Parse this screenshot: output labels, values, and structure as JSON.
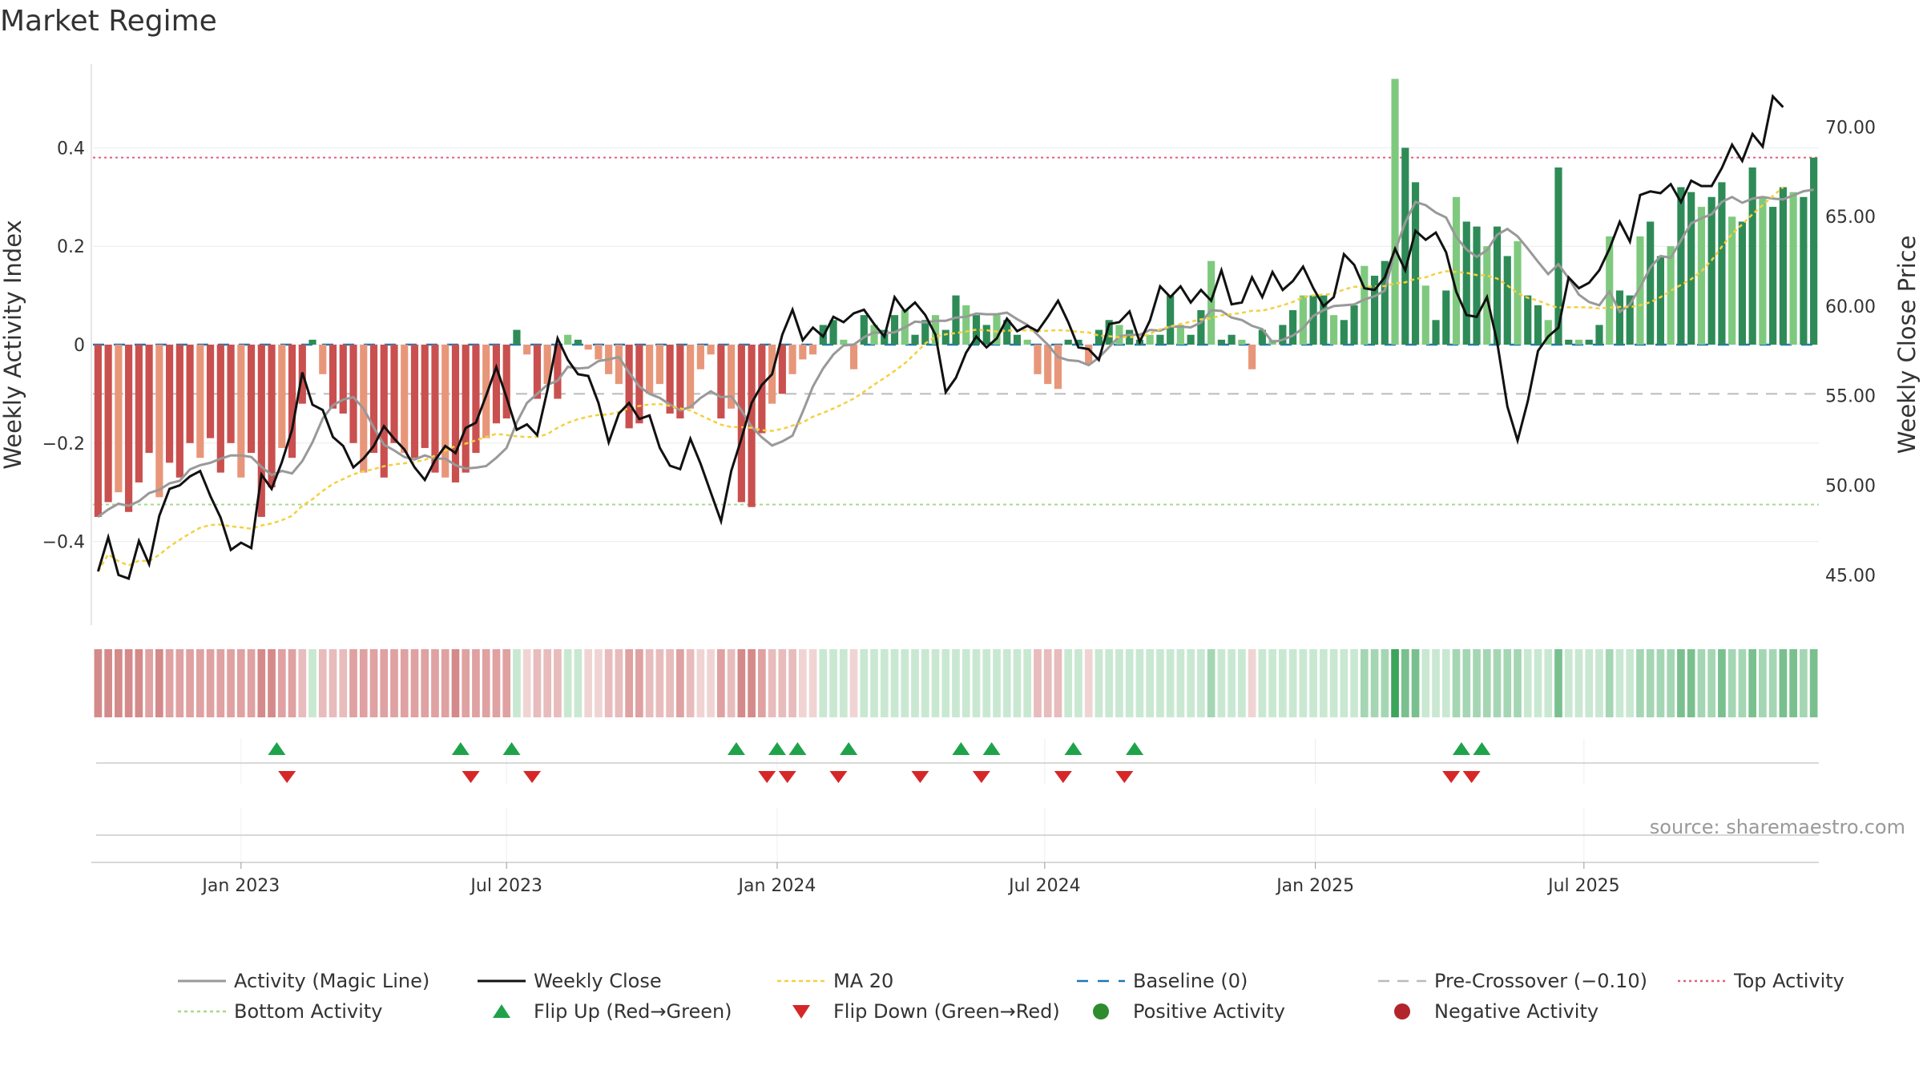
{
  "chart_data": {
    "type": "bar",
    "title": "Market Regime",
    "ylabel": "Weekly Activity Index",
    "y2label": "Weekly Close Price",
    "ylim": [
      -0.57,
      0.57
    ],
    "y2lim": [
      42.2,
      73.5
    ],
    "y_ticks": [
      0.4,
      0.2,
      0,
      -0.2,
      -0.4
    ],
    "y_tick_labels": [
      "0.4",
      "0.2",
      "0",
      "−0.2",
      "−0.4"
    ],
    "y2_ticks": [
      70,
      65,
      60,
      55,
      50,
      45
    ],
    "y2_tick_labels": [
      "70.00",
      "65.00",
      "60.00",
      "55.00",
      "50.00",
      "45.00"
    ],
    "x_tick_labels": [
      "Jan 2023",
      "Jul 2023",
      "Jan 2024",
      "Jul 2024",
      "Jan 2025",
      "Jul 2025"
    ],
    "x_tick_weeks": [
      14.5,
      40.5,
      67,
      93.2,
      119.7,
      146
    ],
    "top_activity": 0.38,
    "bottom_activity": -0.325,
    "pre_crossover": -0.1,
    "baseline": 0,
    "grid": true,
    "legend_position": "bottom",
    "source": "source: sharemaestro.com",
    "activity": [
      -0.35,
      -0.32,
      -0.3,
      -0.34,
      -0.28,
      -0.22,
      -0.31,
      -0.24,
      -0.27,
      -0.2,
      -0.23,
      -0.19,
      -0.26,
      -0.2,
      -0.27,
      -0.22,
      -0.35,
      -0.29,
      -0.21,
      -0.23,
      -0.12,
      0.01,
      -0.06,
      -0.13,
      -0.14,
      -0.2,
      -0.26,
      -0.22,
      -0.27,
      -0.2,
      -0.22,
      -0.23,
      -0.21,
      -0.26,
      -0.27,
      -0.28,
      -0.26,
      -0.22,
      -0.19,
      -0.16,
      -0.15,
      0.03,
      -0.02,
      -0.11,
      -0.08,
      -0.11,
      0.02,
      0.01,
      -0.01,
      -0.03,
      -0.06,
      -0.08,
      -0.17,
      -0.16,
      -0.1,
      -0.08,
      -0.14,
      -0.15,
      -0.13,
      -0.05,
      -0.02,
      -0.15,
      -0.13,
      -0.32,
      -0.33,
      -0.18,
      -0.12,
      -0.1,
      -0.06,
      -0.03,
      -0.02,
      0.04,
      0.05,
      0.01,
      -0.05,
      0.06,
      0.04,
      0.03,
      0.06,
      0.07,
      0.02,
      0.05,
      0.06,
      0.03,
      0.1,
      0.08,
      0.06,
      0.04,
      0.06,
      0.05,
      0.02,
      0.01,
      -0.06,
      -0.08,
      -0.09,
      0.01,
      0.01,
      -0.04,
      0.03,
      0.05,
      0.04,
      0.03,
      0.01,
      0.02,
      0.02,
      0.1,
      0.04,
      0.02,
      0.07,
      0.17,
      0.01,
      0.02,
      0.01,
      -0.05,
      0.03,
      0.01,
      0.04,
      0.07,
      0.1,
      0.1,
      0.1,
      0.06,
      0.05,
      0.08,
      0.16,
      0.14,
      0.17,
      0.54,
      0.4,
      0.33,
      0.12,
      0.05,
      0.11,
      0.3,
      0.25,
      0.24,
      0.2,
      0.24,
      0.18,
      0.21,
      0.1,
      0.08,
      0.05,
      0.36,
      0.01,
      0.01,
      0.01,
      0.04,
      0.22,
      0.11,
      0.1,
      0.22,
      0.25,
      0.18,
      0.2,
      0.32,
      0.31,
      0.28,
      0.3,
      0.33,
      0.26,
      0.25,
      0.36,
      0.3,
      0.28,
      0.32,
      0.31,
      0.3,
      0.38
    ],
    "close": [
      45.2,
      47.1,
      45.0,
      44.8,
      46.9,
      45.6,
      48.3,
      49.8,
      50.0,
      50.5,
      50.8,
      49.4,
      48.2,
      46.4,
      46.8,
      46.5,
      50.6,
      49.8,
      51.3,
      53.1,
      56.3,
      54.5,
      54.2,
      52.7,
      52.2,
      51.0,
      51.5,
      52.2,
      53.3,
      52.6,
      52.0,
      51.0,
      50.3,
      51.4,
      52.2,
      51.8,
      53.2,
      53.5,
      55.0,
      56.6,
      54.9,
      53.1,
      53.4,
      52.8,
      55.3,
      58.2,
      57.0,
      56.2,
      56.1,
      54.6,
      52.4,
      54.0,
      54.6,
      53.7,
      53.9,
      52.1,
      51.1,
      50.9,
      52.6,
      51.2,
      49.6,
      48.0,
      50.8,
      52.6,
      54.6,
      55.6,
      56.2,
      58.4,
      59.8,
      58.1,
      58.8,
      58.3,
      59.4,
      59.1,
      59.6,
      59.8,
      59.0,
      58.3,
      60.5,
      59.7,
      60.2,
      59.5,
      58.4,
      55.2,
      56.0,
      57.4,
      58.3,
      57.7,
      58.2,
      59.3,
      58.6,
      58.9,
      58.6,
      59.4,
      60.3,
      59.1,
      57.7,
      57.6,
      57.0,
      59.0,
      59.1,
      59.7,
      58.0,
      59.2,
      61.1,
      60.5,
      61.1,
      60.2,
      60.9,
      60.3,
      62.0,
      60.1,
      60.2,
      61.6,
      60.5,
      61.9,
      60.9,
      61.4,
      62.2,
      61.0,
      60.0,
      60.5,
      62.9,
      62.3,
      61.0,
      60.9,
      61.6,
      63.2,
      62.0,
      64.2,
      63.7,
      64.1,
      63.0,
      60.8,
      59.5,
      59.4,
      60.5,
      58.0,
      54.4,
      52.5,
      54.7,
      57.5,
      58.3,
      58.8,
      61.6,
      61.0,
      61.3,
      62.0,
      63.2,
      64.7,
      63.6,
      66.2,
      66.4,
      66.3,
      66.8,
      65.8,
      67.0,
      66.7,
      66.7,
      67.7,
      69.0,
      68.1,
      69.6,
      68.9,
      71.7,
      71.1
    ]
  },
  "legend": {
    "magic_line": "Activity (Magic Line)",
    "weekly_close": "Weekly Close",
    "ma20": "MA 20",
    "baseline": "Baseline (0)",
    "pre_crossover": "Pre-Crossover (−0.10)",
    "top_activity": "Top Activity",
    "bottom_activity": "Bottom Activity",
    "flip_up": "Flip Up (Red→Green)",
    "flip_down": "Flip Down (Green→Red)",
    "positive": "Positive Activity",
    "negative": "Negative Activity"
  },
  "colors": {
    "neg_strong": "#c9504f",
    "neg_light": "#e8967a",
    "pos_strong": "#2e8b57",
    "pos_light": "#7fc97f",
    "magic_line": "#999999",
    "close": "#111111",
    "ma20": "#f4d03f",
    "baseline": "#1f77b4",
    "pre_crossover": "#bbbbbb",
    "top_activity": "#e0607e",
    "bottom_activity": "#a8d88a",
    "flip_up": "#1fa34a",
    "flip_down": "#d62728"
  },
  "flip_up_weeks": [
    18,
    36,
    41,
    63,
    67,
    69,
    74,
    85,
    88,
    96,
    102,
    134,
    136
  ],
  "flip_down_weeks": [
    19,
    37,
    43,
    66,
    68,
    73,
    81,
    87,
    95,
    101,
    133,
    135
  ]
}
